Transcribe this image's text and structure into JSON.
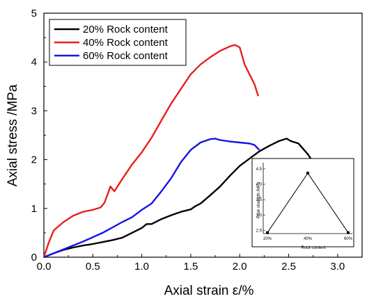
{
  "chart_data": [
    {
      "type": "line",
      "xlabel": "Axial strain ε/%",
      "ylabel": "Axial stress /MPa",
      "xlim": [
        0,
        3.25
      ],
      "ylim": [
        0,
        5
      ],
      "x_ticks": [
        "0.0",
        "0.5",
        "1.0",
        "1.5",
        "2.0",
        "2.5",
        "3.0"
      ],
      "y_ticks": [
        "0",
        "1",
        "2",
        "3",
        "4",
        "5"
      ],
      "legend_position": "top-left",
      "series": [
        {
          "name": "20% Rock content",
          "color": "#000000",
          "x": [
            0,
            0.1,
            0.2,
            0.3,
            0.4,
            0.5,
            0.6,
            0.7,
            0.8,
            0.9,
            1.0,
            1.05,
            1.1,
            1.2,
            1.3,
            1.4,
            1.5,
            1.55,
            1.6,
            1.7,
            1.8,
            1.9,
            2.0,
            2.1,
            2.2,
            2.3,
            2.4,
            2.48,
            2.52,
            2.6,
            2.7,
            2.8,
            2.9,
            2.95
          ],
          "y": [
            0,
            0.08,
            0.15,
            0.2,
            0.24,
            0.27,
            0.31,
            0.35,
            0.4,
            0.5,
            0.6,
            0.68,
            0.68,
            0.78,
            0.86,
            0.93,
            0.98,
            1.05,
            1.1,
            1.27,
            1.45,
            1.67,
            1.87,
            2.02,
            2.17,
            2.28,
            2.38,
            2.43,
            2.38,
            2.33,
            2.1,
            1.78,
            1.35,
            1.0
          ]
        },
        {
          "name": "40% Rock content",
          "color": "#e8201a",
          "x": [
            0,
            0.05,
            0.1,
            0.2,
            0.3,
            0.4,
            0.5,
            0.58,
            0.62,
            0.68,
            0.72,
            0.8,
            0.9,
            1.0,
            1.1,
            1.2,
            1.3,
            1.4,
            1.5,
            1.6,
            1.7,
            1.8,
            1.9,
            1.95,
            2.0,
            2.05,
            2.1,
            2.15,
            2.19
          ],
          "y": [
            0,
            0.3,
            0.55,
            0.72,
            0.85,
            0.93,
            0.97,
            1.02,
            1.12,
            1.45,
            1.35,
            1.6,
            1.9,
            2.15,
            2.45,
            2.8,
            3.15,
            3.45,
            3.75,
            3.95,
            4.1,
            4.23,
            4.32,
            4.35,
            4.3,
            3.95,
            3.75,
            3.55,
            3.3
          ]
        },
        {
          "name": "60% Rock content",
          "color": "#1414e6",
          "x": [
            0,
            0.2,
            0.4,
            0.6,
            0.8,
            0.9,
            1.0,
            1.1,
            1.2,
            1.3,
            1.4,
            1.5,
            1.6,
            1.7,
            1.75,
            1.8,
            1.9,
            2.0,
            2.1,
            2.15,
            2.2
          ],
          "y": [
            0,
            0.16,
            0.32,
            0.5,
            0.72,
            0.82,
            0.97,
            1.1,
            1.35,
            1.62,
            1.95,
            2.2,
            2.35,
            2.42,
            2.43,
            2.4,
            2.37,
            2.35,
            2.33,
            2.3,
            2.2
          ]
        }
      ]
    },
    {
      "type": "line",
      "xlabel": "Rock content",
      "ylabel": "Peak strength /MPa",
      "categories": [
        "20%",
        "40%",
        "60%"
      ],
      "values": [
        2.43,
        4.36,
        2.43
      ],
      "ylim": [
        2.4,
        4.7
      ],
      "y_ticks": [
        "2.5",
        "3.0",
        "3.5",
        "4.0",
        "4.5"
      ],
      "color": "#000000"
    }
  ]
}
